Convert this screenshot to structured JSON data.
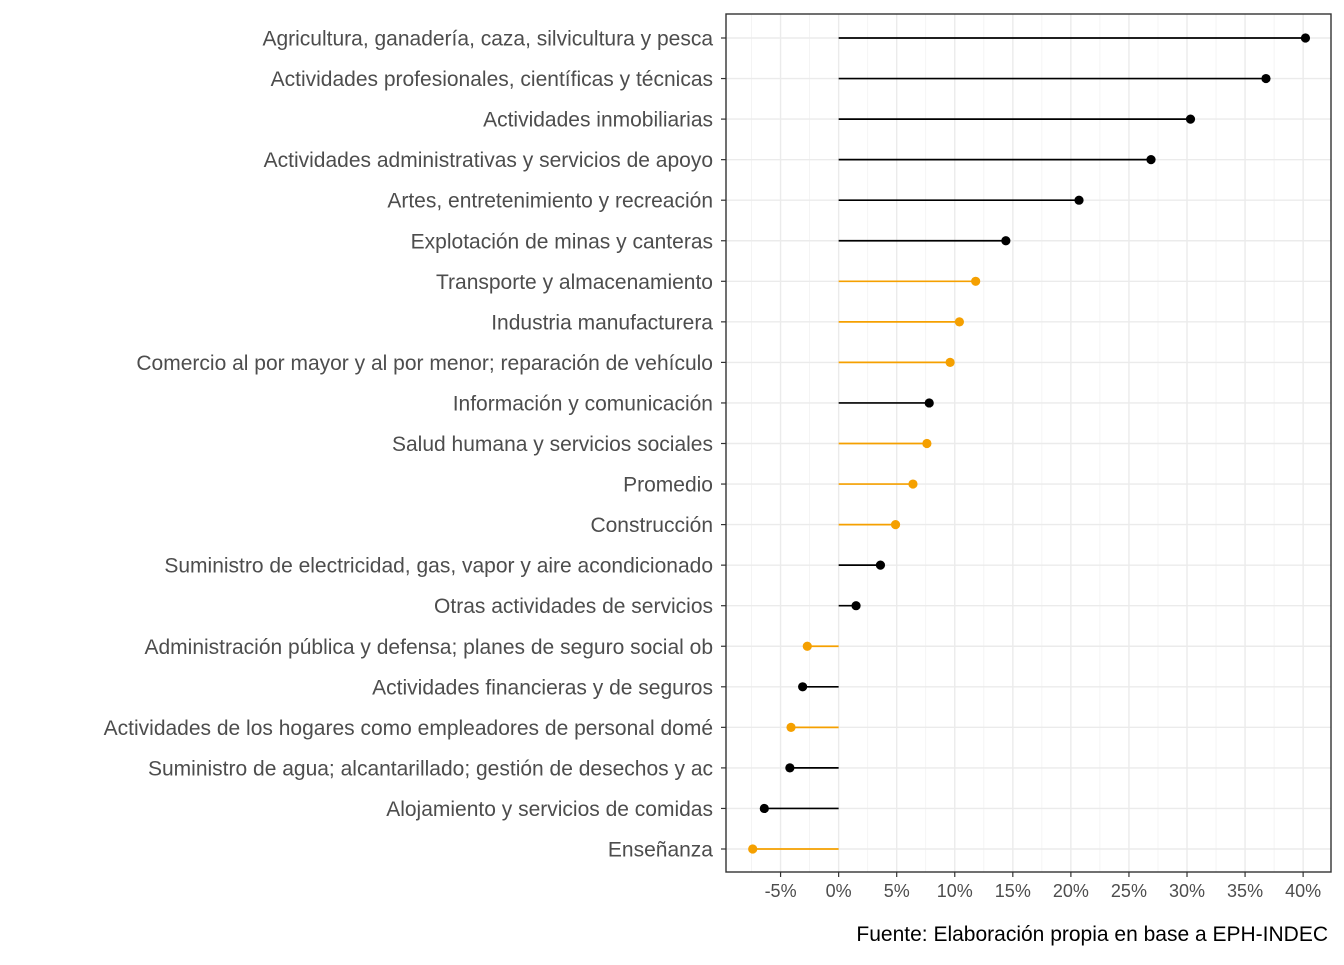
{
  "chart_data": {
    "type": "lollipop",
    "title": "",
    "xlabel": "",
    "ylabel": "",
    "caption": "Fuente: Elaboración propia en base a EPH-INDEC",
    "x_ticks": [
      -5,
      0,
      5,
      10,
      15,
      20,
      25,
      30,
      35,
      40
    ],
    "x_tick_labels": [
      "-5%",
      "0%",
      "5%",
      "10%",
      "15%",
      "20%",
      "25%",
      "30%",
      "35%",
      "40%"
    ],
    "xlim": [
      -9.7,
      42.4
    ],
    "grid": true,
    "legend": "none",
    "colors": {
      "black": "#000000",
      "orange": "#F5A000"
    },
    "categories": [
      "Agricultura, ganadería, caza, silvicultura y pesca",
      "Actividades profesionales, científicas y técnicas",
      "Actividades inmobiliarias",
      "Actividades administrativas y servicios de apoyo",
      "Artes, entretenimiento y recreación",
      "Explotación de minas y canteras",
      "Transporte y almacenamiento",
      "Industria manufacturera",
      "Comercio al por mayor y al por menor; reparación de vehículo",
      "Información y comunicación",
      "Salud humana y servicios sociales",
      "Promedio",
      "Construcción",
      "Suministro de electricidad, gas, vapor y aire acondicionado",
      "Otras actividades de servicios",
      "Administración pública y defensa; planes de seguro social ob",
      "Actividades financieras y de seguros",
      "Actividades de los hogares como empleadores de personal domé",
      "Suministro de agua; alcantarillado; gestión de desechos y ac",
      "Alojamiento y servicios de comidas",
      "Enseñanza"
    ],
    "values": [
      40.2,
      36.8,
      30.3,
      26.9,
      20.7,
      14.4,
      11.8,
      10.4,
      9.6,
      7.8,
      7.6,
      6.4,
      4.9,
      3.6,
      1.5,
      -2.7,
      -3.1,
      -4.1,
      -4.2,
      -6.4,
      -7.4
    ],
    "point_colors": [
      "black",
      "black",
      "black",
      "black",
      "black",
      "black",
      "orange",
      "orange",
      "orange",
      "black",
      "orange",
      "orange",
      "orange",
      "black",
      "black",
      "orange",
      "black",
      "orange",
      "black",
      "black",
      "orange"
    ]
  }
}
